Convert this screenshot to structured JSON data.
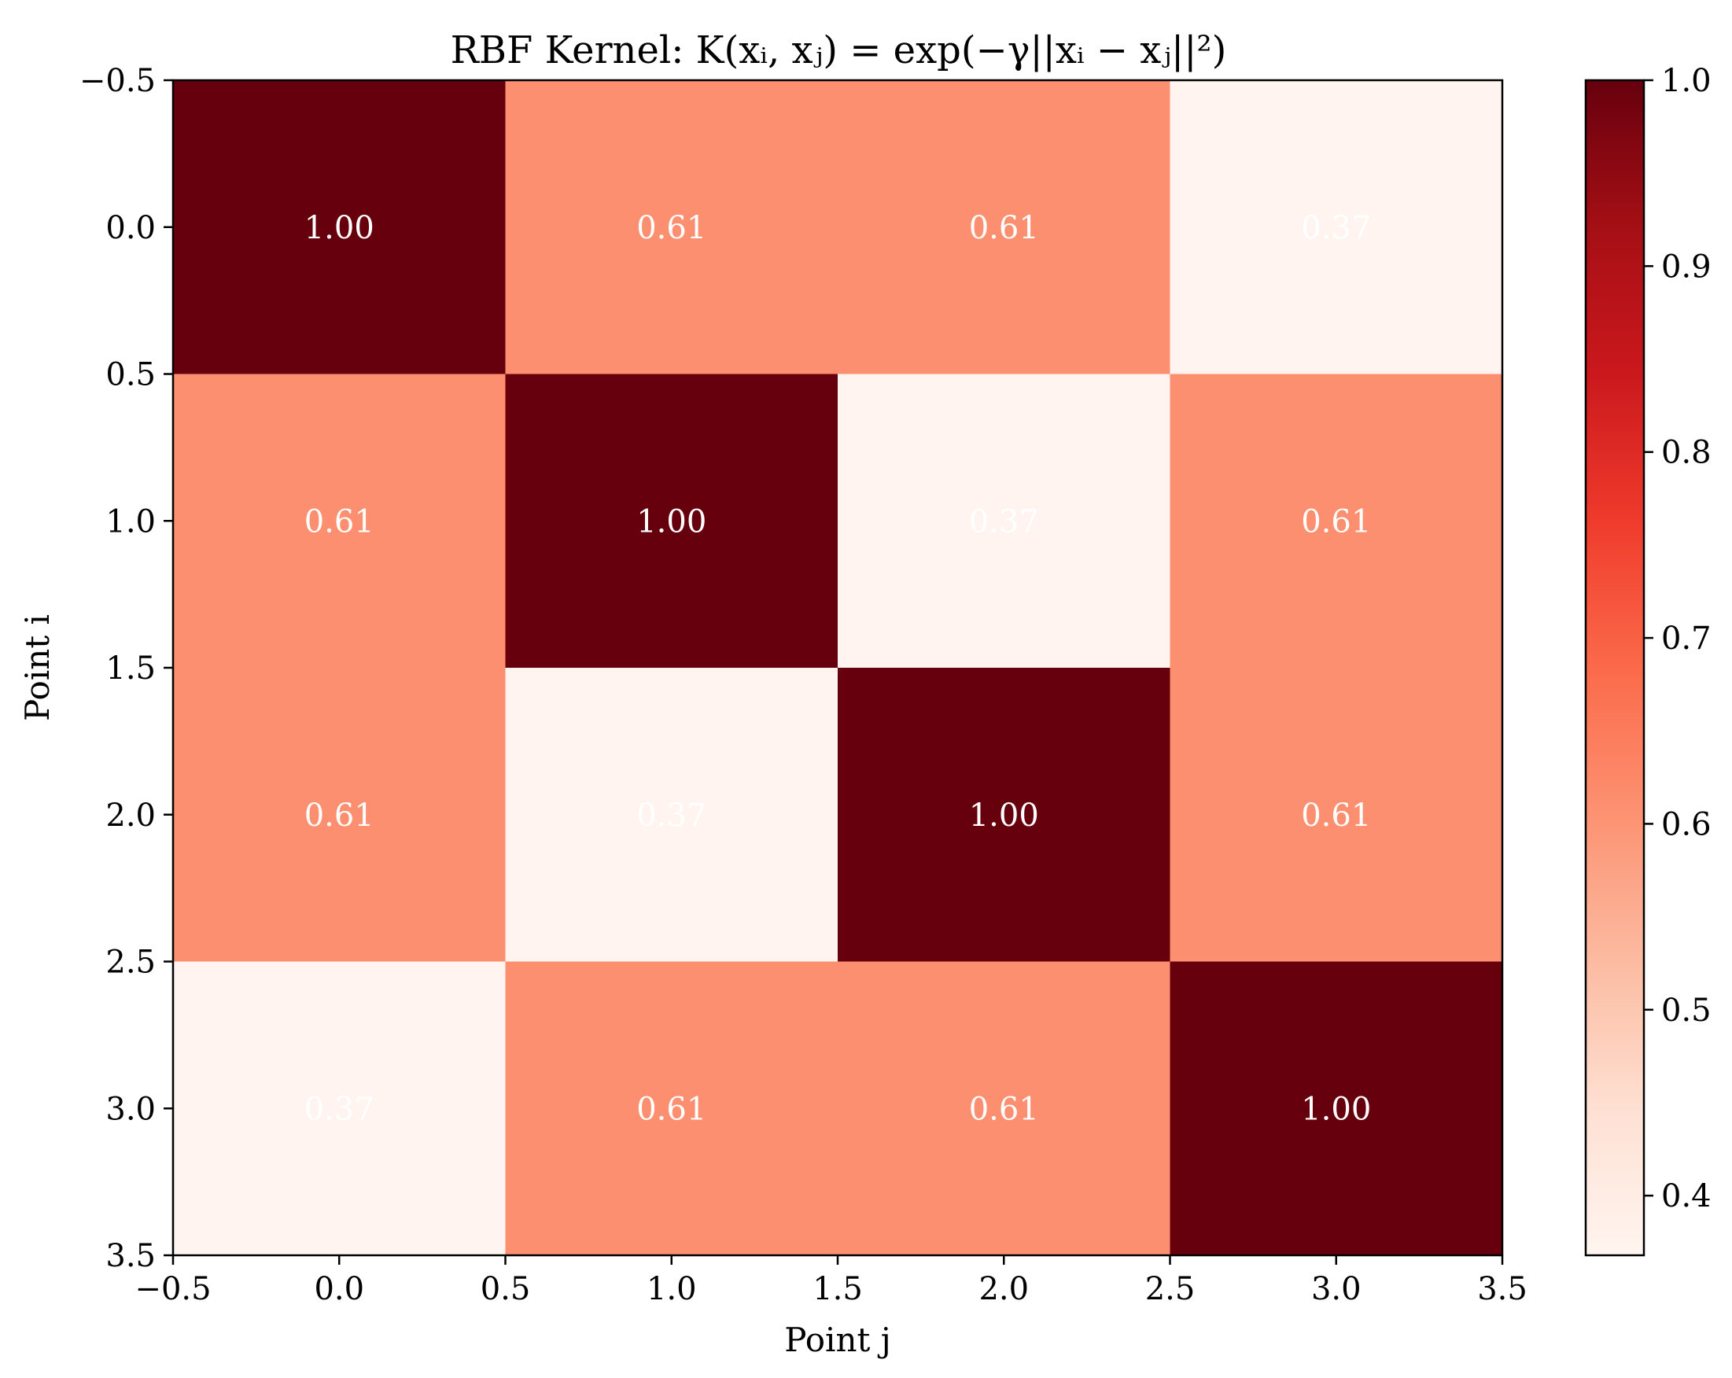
{
  "chart_data": {
    "type": "heatmap",
    "title": "RBF Kernel: K(xᵢ, xⱼ) = exp(−γ||xᵢ − xⱼ||²)",
    "xlabel": "Point j",
    "ylabel": "Point i",
    "xlim": [
      -0.5,
      3.5
    ],
    "ylim": [
      3.5,
      -0.5
    ],
    "x_ticks": [
      "−0.5",
      "0.0",
      "0.5",
      "1.0",
      "1.5",
      "2.0",
      "2.5",
      "3.0",
      "3.5"
    ],
    "y_ticks": [
      "−0.5",
      "0.0",
      "0.5",
      "1.0",
      "1.5",
      "2.0",
      "2.5",
      "3.0",
      "3.5"
    ],
    "matrix": [
      [
        1.0,
        0.61,
        0.61,
        0.37
      ],
      [
        0.61,
        1.0,
        0.37,
        0.61
      ],
      [
        0.61,
        0.37,
        1.0,
        0.61
      ],
      [
        0.37,
        0.61,
        0.61,
        1.0
      ]
    ],
    "cell_labels": [
      [
        "1.00",
        "0.61",
        "0.61",
        "0.37"
      ],
      [
        "0.61",
        "1.00",
        "0.37",
        "0.61"
      ],
      [
        "0.61",
        "0.37",
        "1.00",
        "0.61"
      ],
      [
        "0.37",
        "0.61",
        "0.61",
        "1.00"
      ]
    ],
    "colormap": "Reds",
    "cell_label_color": "#ffffff",
    "colorbar": {
      "range": [
        0.3679,
        1.0
      ],
      "ticks": [
        "0.4",
        "0.5",
        "0.6",
        "0.7",
        "0.8",
        "0.9",
        "1.0"
      ],
      "tick_values": [
        0.4,
        0.5,
        0.6,
        0.7,
        0.8,
        0.9,
        1.0
      ]
    },
    "grid": false
  }
}
